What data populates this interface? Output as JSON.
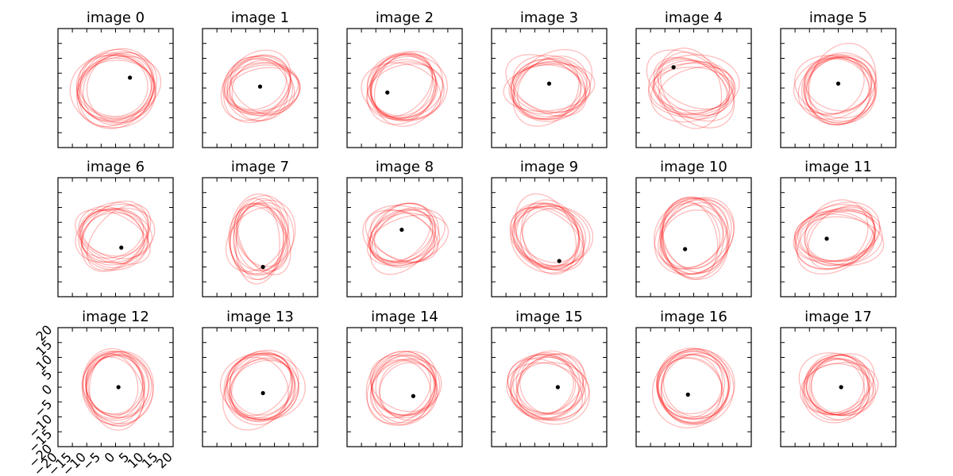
{
  "chart_data": {
    "type": "scatter",
    "layout": "small-multiples-grid",
    "grid": {
      "rows": 3,
      "cols": 6,
      "gridlines": false
    },
    "xlim": [
      -20,
      20
    ],
    "ylim": [
      -20,
      20
    ],
    "tick_values": [
      -20,
      -15,
      -10,
      -5,
      0,
      5,
      10,
      15,
      20
    ],
    "x_tick_labels": [
      "−20",
      "−15",
      "−10",
      "−5",
      "0",
      "5",
      "10",
      "15",
      "20"
    ],
    "y_tick_labels": [
      "−20",
      "−15",
      "−10",
      "−5",
      "0",
      "5",
      "10",
      "15",
      "20"
    ],
    "labeled_panel": "image 12",
    "ellipse_color": "#ff0000",
    "ellipse_opacity": 0.28,
    "point_color": "#000000",
    "panels": [
      {
        "title": "image 0",
        "point": [
          5,
          3.5
        ],
        "rot": 0.15,
        "ellipse_rx": 13,
        "ellipse_ry": 11
      },
      {
        "title": "image 1",
        "point": [
          0,
          0.5
        ],
        "rot": 0.2,
        "ellipse_rx": 12,
        "ellipse_ry": 9
      },
      {
        "title": "image 2",
        "point": [
          -6,
          -1.5
        ],
        "rot": 0.3,
        "ellipse_rx": 12,
        "ellipse_ry": 10
      },
      {
        "title": "image 3",
        "point": [
          0,
          1.5
        ],
        "rot": 0.1,
        "ellipse_rx": 14,
        "ellipse_ry": 9
      },
      {
        "title": "image 4",
        "point": [
          -7,
          7
        ],
        "rot": -0.45,
        "ellipse_rx": 15,
        "ellipse_ry": 9
      },
      {
        "title": "image 5",
        "point": [
          0,
          1.5
        ],
        "rot": 0.4,
        "ellipse_rx": 13,
        "ellipse_ry": 10
      },
      {
        "title": "image 6",
        "point": [
          2,
          -3.5
        ],
        "rot": 0.25,
        "ellipse_rx": 13,
        "ellipse_ry": 9
      },
      {
        "title": "image 7",
        "point": [
          1,
          -10
        ],
        "rot": 1.4,
        "ellipse_rx": 13,
        "ellipse_ry": 9
      },
      {
        "title": "image 8",
        "point": [
          -1,
          2.5
        ],
        "rot": 0.2,
        "ellipse_rx": 13,
        "ellipse_ry": 9
      },
      {
        "title": "image 9",
        "point": [
          3.5,
          -8
        ],
        "rot": -0.75,
        "ellipse_rx": 13,
        "ellipse_ry": 10
      },
      {
        "title": "image 10",
        "point": [
          -3,
          -4
        ],
        "rot": 1.3,
        "ellipse_rx": 13,
        "ellipse_ry": 10
      },
      {
        "title": "image 11",
        "point": [
          -4,
          -0.5
        ],
        "rot": 0.2,
        "ellipse_rx": 14,
        "ellipse_ry": 9
      },
      {
        "title": "image 12",
        "point": [
          1,
          0
        ],
        "rot": 1.2,
        "ellipse_rx": 12,
        "ellipse_ry": 10
      },
      {
        "title": "image 13",
        "point": [
          1,
          -2
        ],
        "rot": 0.5,
        "ellipse_rx": 13,
        "ellipse_ry": 10
      },
      {
        "title": "image 14",
        "point": [
          3,
          -3
        ],
        "rot": 0.35,
        "ellipse_rx": 12,
        "ellipse_ry": 10
      },
      {
        "title": "image 15",
        "point": [
          3,
          0
        ],
        "rot": 0.25,
        "ellipse_rx": 12,
        "ellipse_ry": 10
      },
      {
        "title": "image 16",
        "point": [
          -2,
          -2.5
        ],
        "rot": 0.4,
        "ellipse_rx": 12,
        "ellipse_ry": 11
      },
      {
        "title": "image 17",
        "point": [
          1,
          0
        ],
        "rot": 0.3,
        "ellipse_rx": 12,
        "ellipse_ry": 10
      }
    ]
  }
}
